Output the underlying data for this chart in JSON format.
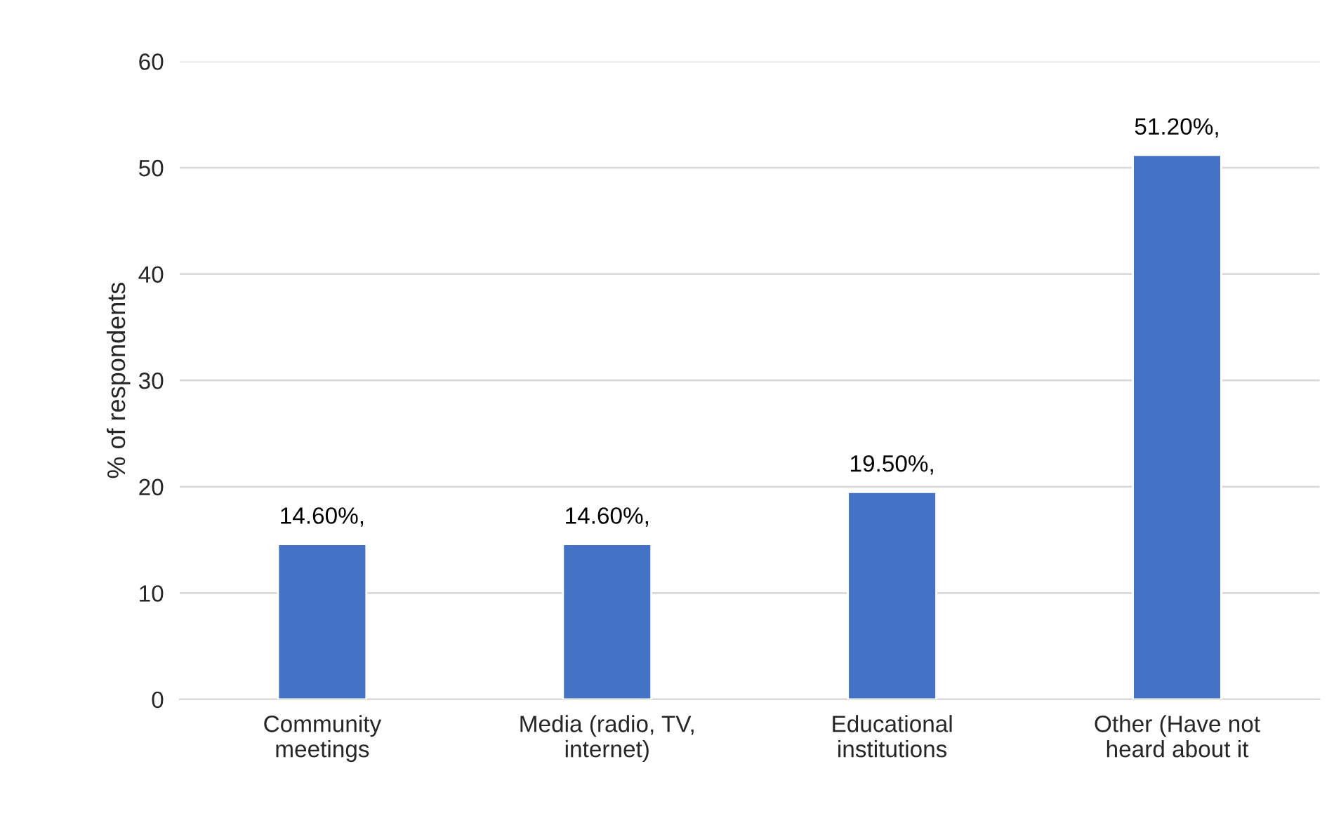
{
  "chart_data": {
    "type": "bar",
    "ylabel": "% of respondents",
    "categories": [
      "Community\nmeetings",
      "Media (radio, TV,\ninternet)",
      "Educational\ninstitutions",
      "Other (Have not\nheard about it"
    ],
    "values": [
      14.6,
      14.6,
      19.5,
      51.2
    ],
    "value_labels": [
      "14.60%,",
      "14.60%,",
      "19.50%,",
      "51.20%,"
    ],
    "color": "#4472c4",
    "ylim": [
      0,
      60
    ],
    "yticks": [
      0,
      10,
      20,
      30,
      40,
      50,
      60
    ],
    "grid": "y",
    "legend": false
  }
}
